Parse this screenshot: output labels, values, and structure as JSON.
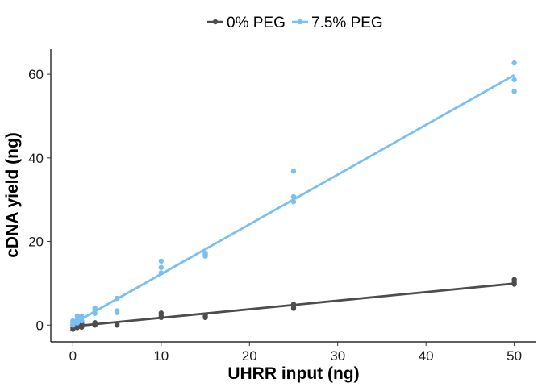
{
  "chart_data": {
    "type": "scatter",
    "title": "",
    "xlabel": "UHRR input (ng)",
    "ylabel": "cDNA yield (ng)",
    "xlim": [
      -2.5,
      52.5
    ],
    "ylim": [
      -4,
      66
    ],
    "xticks": [
      0,
      10,
      20,
      30,
      40,
      50
    ],
    "yticks": [
      0,
      20,
      40,
      60
    ],
    "grid": false,
    "legend_position": "top",
    "series": [
      {
        "name": "0% PEG",
        "color": "#4d4d4d",
        "points": [
          [
            0,
            -1.0
          ],
          [
            0,
            -0.5
          ],
          [
            0,
            0.0
          ],
          [
            0.5,
            -0.6
          ],
          [
            0.5,
            0.2
          ],
          [
            0.5,
            -0.3
          ],
          [
            1,
            -0.5
          ],
          [
            1,
            0.0
          ],
          [
            1,
            0.4
          ],
          [
            2.5,
            0.0
          ],
          [
            2.5,
            0.3
          ],
          [
            2.5,
            0.6
          ],
          [
            5,
            0.0
          ],
          [
            5,
            0.3
          ],
          [
            10,
            1.8
          ],
          [
            10,
            2.2
          ],
          [
            10,
            2.9
          ],
          [
            15,
            1.8
          ],
          [
            15,
            2.1
          ],
          [
            15,
            2.4
          ],
          [
            25,
            4.0
          ],
          [
            25,
            4.5
          ],
          [
            25,
            5.0
          ],
          [
            50,
            9.8
          ],
          [
            50,
            10.2
          ],
          [
            50,
            10.9
          ]
        ],
        "fit": {
          "slope": 0.205,
          "intercept": -0.3
        }
      },
      {
        "name": "7.5% PEG",
        "color": "#7abff2",
        "points": [
          [
            0,
            0.0
          ],
          [
            0,
            0.5
          ],
          [
            0,
            1.0
          ],
          [
            0.5,
            0.5
          ],
          [
            0.5,
            1.2
          ],
          [
            0.5,
            2.2
          ],
          [
            1,
            1.0
          ],
          [
            1,
            1.8
          ],
          [
            1,
            2.2
          ],
          [
            2.5,
            2.8
          ],
          [
            2.5,
            3.6
          ],
          [
            2.5,
            4.1
          ],
          [
            5,
            3.0
          ],
          [
            5,
            3.4
          ],
          [
            5,
            6.4
          ],
          [
            10,
            12.5
          ],
          [
            10,
            13.8
          ],
          [
            10,
            15.3
          ],
          [
            15,
            16.5
          ],
          [
            15,
            16.9
          ],
          [
            15,
            17.2
          ],
          [
            25,
            29.5
          ],
          [
            25,
            30.7
          ],
          [
            25,
            36.8
          ],
          [
            50,
            55.9
          ],
          [
            50,
            58.7
          ],
          [
            50,
            62.7
          ]
        ],
        "fit": {
          "slope": 1.19,
          "intercept": 0.3
        }
      }
    ]
  }
}
